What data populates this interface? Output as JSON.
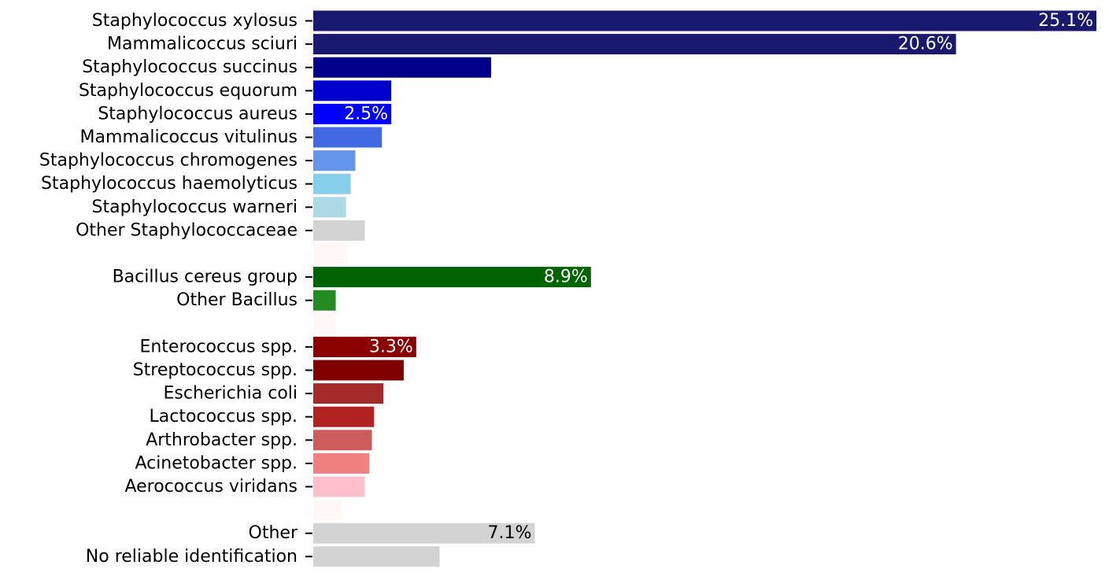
{
  "chart_data": {
    "type": "bar",
    "orientation": "horizontal",
    "title": "",
    "xlabel": "",
    "ylabel": "",
    "xlim": [
      0,
      25.1
    ],
    "grid": false,
    "legend": "none",
    "categories": [
      "Staphylococcus  xylosus",
      "Mammalicoccus  sciuri",
      "Staphylococcus  succinus",
      "Staphylococcus  equorum",
      "Staphylococcus  aureus",
      "Mammalicoccus  vitulinus",
      "Staphylococcus  chromogenes",
      "Staphylococcus  haemolyticus",
      "Staphylococcus  warneri",
      "Other Staphylococcaceae",
      "",
      "Bacillus cereus group",
      "Other Bacillus",
      "",
      "Enterococcus spp.",
      "Streptococcus spp.",
      "Escherichia coli",
      "Lactococcus spp.",
      "Arthrobacter spp.",
      "Acinetobacter spp.",
      "Aerococcus viridans",
      "",
      "Other",
      "No reliable identification"
    ],
    "values": [
      25.1,
      20.6,
      5.7,
      2.5,
      2.5,
      2.2,
      1.35,
      1.2,
      1.05,
      1.65,
      1.1,
      8.9,
      0.72,
      0.7,
      3.3,
      2.9,
      2.25,
      1.95,
      1.88,
      1.8,
      1.65,
      0.9,
      7.1,
      4.05
    ],
    "colors": [
      "#191970",
      "#191970",
      "#00008B",
      "#0000CD",
      "#0000FF",
      "#4169E1",
      "#6495ED",
      "#87CEEB",
      "#ADD8E6",
      "#D3D3D3",
      "#FFF8F6",
      "#006400",
      "#228B22",
      "#FFF8F6",
      "#8B0000",
      "#800000",
      "#A52A2A",
      "#B22222",
      "#CD5C5C",
      "#F08080",
      "#FFC0CB",
      "#FFF8F6",
      "#D3D3D3",
      "#D3D3D3"
    ],
    "bar_labels": [
      "25.1%",
      "20.6%",
      "",
      "",
      "2.5%",
      "",
      "",
      "",
      "",
      "",
      "",
      "8.9%",
      "",
      "",
      "3.3%",
      "",
      "",
      "",
      "",
      "",
      "",
      "",
      "7.1%",
      ""
    ],
    "bar_label_colors": [
      "#ffffff",
      "#ffffff",
      "",
      "",
      "#ffffff",
      "",
      "",
      "",
      "",
      "",
      "",
      "#ffffff",
      "",
      "",
      "#ffffff",
      "",
      "",
      "",
      "",
      "",
      "",
      "",
      "#000000",
      ""
    ]
  }
}
